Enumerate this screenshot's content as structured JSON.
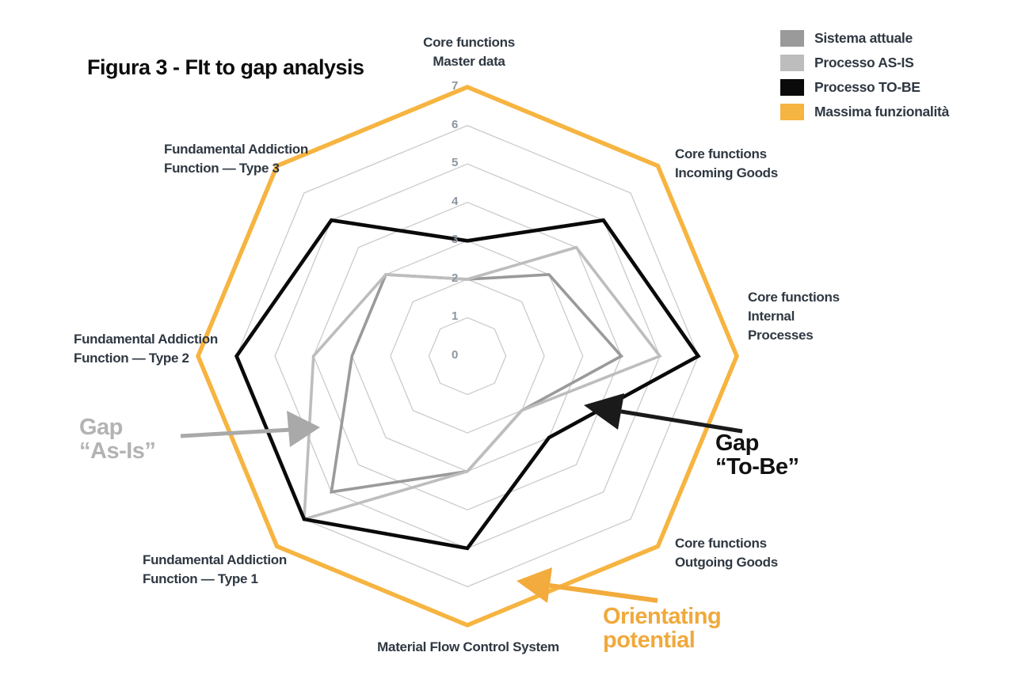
{
  "title": "Figura 3 -  FIt to gap analysis",
  "chart_data": {
    "type": "radar",
    "title": "Fit to gap analysis",
    "max": 7,
    "tick_labels": [
      "0",
      "1",
      "2",
      "3",
      "4",
      "5",
      "6",
      "7"
    ],
    "grid_color": "#cbcbcb",
    "legend_position": "top-right",
    "axes": [
      {
        "label": "Core functions\nMaster data"
      },
      {
        "label": "Core functions\nIncoming Goods"
      },
      {
        "label": "Core functions\nInternal\nProcesses"
      },
      {
        "label": "Core functions\nOutgoing Goods"
      },
      {
        "label": "Material Flow Control System"
      },
      {
        "label": "Fundamental Addiction\nFunction — Type 1"
      },
      {
        "label": "Fundamental Addiction\nFunction — Type 2"
      },
      {
        "label": "Fundamental Addiction\nFunction — Type 3"
      }
    ],
    "series": [
      {
        "name": "Sistema attuale",
        "color": "#9a9a9a",
        "width": 3.6,
        "values": [
          2,
          3,
          4,
          2,
          3,
          5,
          3,
          3
        ]
      },
      {
        "name": "Processo AS-IS",
        "color": "#bdbdbd",
        "width": 3.6,
        "values": [
          2,
          4,
          5,
          2,
          3,
          6,
          4,
          3
        ]
      },
      {
        "name": "Processo TO-BE",
        "color": "#0a0a0a",
        "width": 4.6,
        "values": [
          3,
          5,
          6,
          3,
          5,
          6,
          6,
          5
        ]
      },
      {
        "name": "Massima funzionalità",
        "color": "#f6b441",
        "width": 5.5,
        "values": [
          7,
          7,
          7,
          7,
          7,
          7,
          7,
          7
        ]
      }
    ]
  },
  "annotations": {
    "gap_as_is": {
      "text": "Gap\n“As-Is”",
      "color": "#b3b3b3"
    },
    "gap_to_be": {
      "text": "Gap\n“To-Be”",
      "color": "#111111"
    },
    "orientating": {
      "text": "Orientating\npotential",
      "color": "#f0a93c"
    }
  }
}
